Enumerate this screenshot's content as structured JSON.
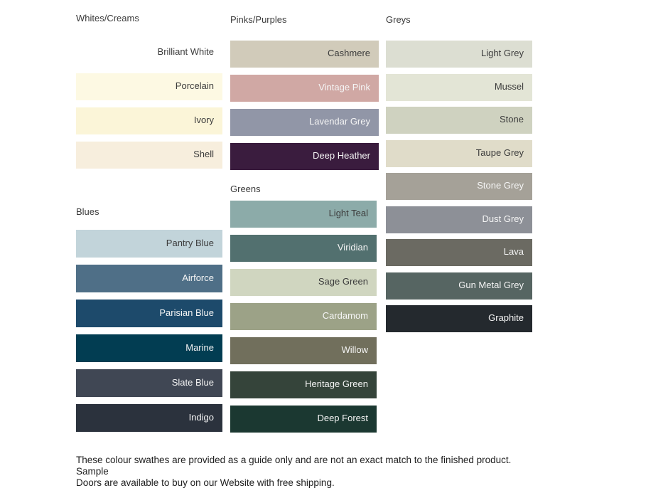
{
  "sections": [
    {
      "id": "whites-creams",
      "label": "Whites/Creams",
      "swatches": [
        {
          "name": "Brilliant White",
          "color": "#FFFFFF",
          "label_color": "#3c3c3c"
        },
        {
          "name": "Porcelain",
          "color": "#FDF9E3",
          "label_color": "#3c3c3c"
        },
        {
          "name": "Ivory",
          "color": "#FBF5D8",
          "label_color": "#3c3c3c"
        },
        {
          "name": "Shell",
          "color": "#F7EEDD",
          "label_color": "#3c3c3c"
        }
      ]
    },
    {
      "id": "blues",
      "label": "Blues",
      "swatches": [
        {
          "name": "Pantry Blue",
          "color": "#C2D4DA",
          "label_color": "#3c3c3c"
        },
        {
          "name": "Airforce",
          "color": "#4F6F87",
          "label_color": "#F5F5F5"
        },
        {
          "name": "Parisian Blue",
          "color": "#1D4A6B",
          "label_color": "#F5F5F5"
        },
        {
          "name": "Marine",
          "color": "#023D52",
          "label_color": "#F5F5F5"
        },
        {
          "name": "Slate Blue",
          "color": "#404754",
          "label_color": "#F5F5F5"
        },
        {
          "name": "Indigo",
          "color": "#2B323D",
          "label_color": "#F5F5F5"
        }
      ]
    },
    {
      "id": "pinks-purples",
      "label": "Pinks/Purples",
      "swatches": [
        {
          "name": "Cashmere",
          "color": "#D1CBBA",
          "label_color": "#3c3c3c"
        },
        {
          "name": "Vintage Pink",
          "color": "#D0A8A4",
          "label_color": "#F5F5F5"
        },
        {
          "name": "Lavendar Grey",
          "color": "#9196A7",
          "label_color": "#F5F5F5"
        },
        {
          "name": "Deep Heather",
          "color": "#3A1C3E",
          "label_color": "#F5F5F5"
        }
      ]
    },
    {
      "id": "greens",
      "label": "Greens",
      "swatches": [
        {
          "name": "Light Teal",
          "color": "#8CABA9",
          "label_color": "#3c3c3c"
        },
        {
          "name": "Viridian",
          "color": "#52706F",
          "label_color": "#F5F5F5"
        },
        {
          "name": "Sage Green",
          "color": "#D0D6C0",
          "label_color": "#3c3c3c"
        },
        {
          "name": "Cardamom",
          "color": "#9CA287",
          "label_color": "#F5F5F5"
        },
        {
          "name": "Willow",
          "color": "#716F5C",
          "label_color": "#F5F5F5"
        },
        {
          "name": "Heritage Green",
          "color": "#35443A",
          "label_color": "#F5F5F5"
        },
        {
          "name": "Deep Forest",
          "color": "#1B3831",
          "label_color": "#F5F5F5"
        }
      ]
    },
    {
      "id": "greys",
      "label": "Greys",
      "swatches": [
        {
          "name": "Light Grey",
          "color": "#DCDED2",
          "label_color": "#3c3c3c"
        },
        {
          "name": "Mussel",
          "color": "#E3E5D6",
          "label_color": "#3c3c3c"
        },
        {
          "name": "Stone",
          "color": "#CFD2C0",
          "label_color": "#3c3c3c"
        },
        {
          "name": "Taupe Grey",
          "color": "#E0DCC9",
          "label_color": "#3c3c3c"
        },
        {
          "name": "Stone Grey",
          "color": "#A5A198",
          "label_color": "#F5F5F5"
        },
        {
          "name": "Dust Grey",
          "color": "#8D9097",
          "label_color": "#F5F5F5"
        },
        {
          "name": "Lava",
          "color": "#6B6A62",
          "label_color": "#F5F5F5"
        },
        {
          "name": "Gun Metal Grey",
          "color": "#566562",
          "label_color": "#F5F5F5"
        },
        {
          "name": "Graphite",
          "color": "#24292E",
          "label_color": "#F5F5F5"
        }
      ]
    }
  ],
  "footer": {
    "line1": "These colour swathes are provided as a guide only and are not an exact match to the finished product.  Sample",
    "line2": "Doors are available to buy on our Website with free shipping."
  }
}
